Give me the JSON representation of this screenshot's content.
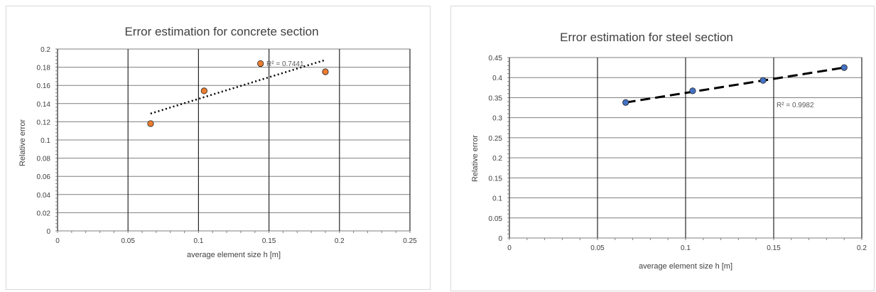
{
  "chart_data": [
    {
      "type": "scatter",
      "title": "Error estimation for concrete section",
      "xlabel": "average element size h [m]",
      "ylabel": "Relative error",
      "xlim": [
        0,
        0.25
      ],
      "ylim": [
        0,
        0.2
      ],
      "x_major_ticks": [
        0,
        0.05,
        0.1,
        0.15,
        0.2,
        0.25
      ],
      "y_major_ticks": [
        0,
        0.02,
        0.04,
        0.06,
        0.08,
        0.1,
        0.12,
        0.14,
        0.16,
        0.18,
        0.2
      ],
      "grid": {
        "vertical": true,
        "horizontal": true
      },
      "series": [
        {
          "marker_color": "#ed7d31",
          "x": [
            0.066,
            0.104,
            0.144,
            0.19
          ],
          "y": [
            0.118,
            0.154,
            0.184,
            0.175
          ]
        }
      ],
      "trendline": {
        "type": "linear",
        "style": "dotted",
        "x_range": [
          0.066,
          0.19
        ],
        "y_range": [
          0.129,
          0.188
        ],
        "r2_label": "R² = 0.7441"
      }
    },
    {
      "type": "scatter",
      "title": "Error estimation for steel section",
      "xlabel": "average element size h [m]",
      "ylabel": "Relative error",
      "xlim": [
        0,
        0.2
      ],
      "ylim": [
        0,
        0.45
      ],
      "x_major_ticks": [
        0,
        0.05,
        0.1,
        0.15,
        0.2
      ],
      "y_major_ticks": [
        0,
        0.05,
        0.1,
        0.15,
        0.2,
        0.25,
        0.3,
        0.35,
        0.4,
        0.45
      ],
      "grid": {
        "vertical": true,
        "horizontal": true
      },
      "series": [
        {
          "marker_color": "#4472c4",
          "x": [
            0.066,
            0.104,
            0.144,
            0.19
          ],
          "y": [
            0.338,
            0.367,
            0.393,
            0.425
          ]
        }
      ],
      "trendline": {
        "type": "linear",
        "style": "dashed",
        "x_range": [
          0.066,
          0.19
        ],
        "y_range": [
          0.338,
          0.425
        ],
        "r2_label": "R² = 0.9982"
      }
    }
  ]
}
